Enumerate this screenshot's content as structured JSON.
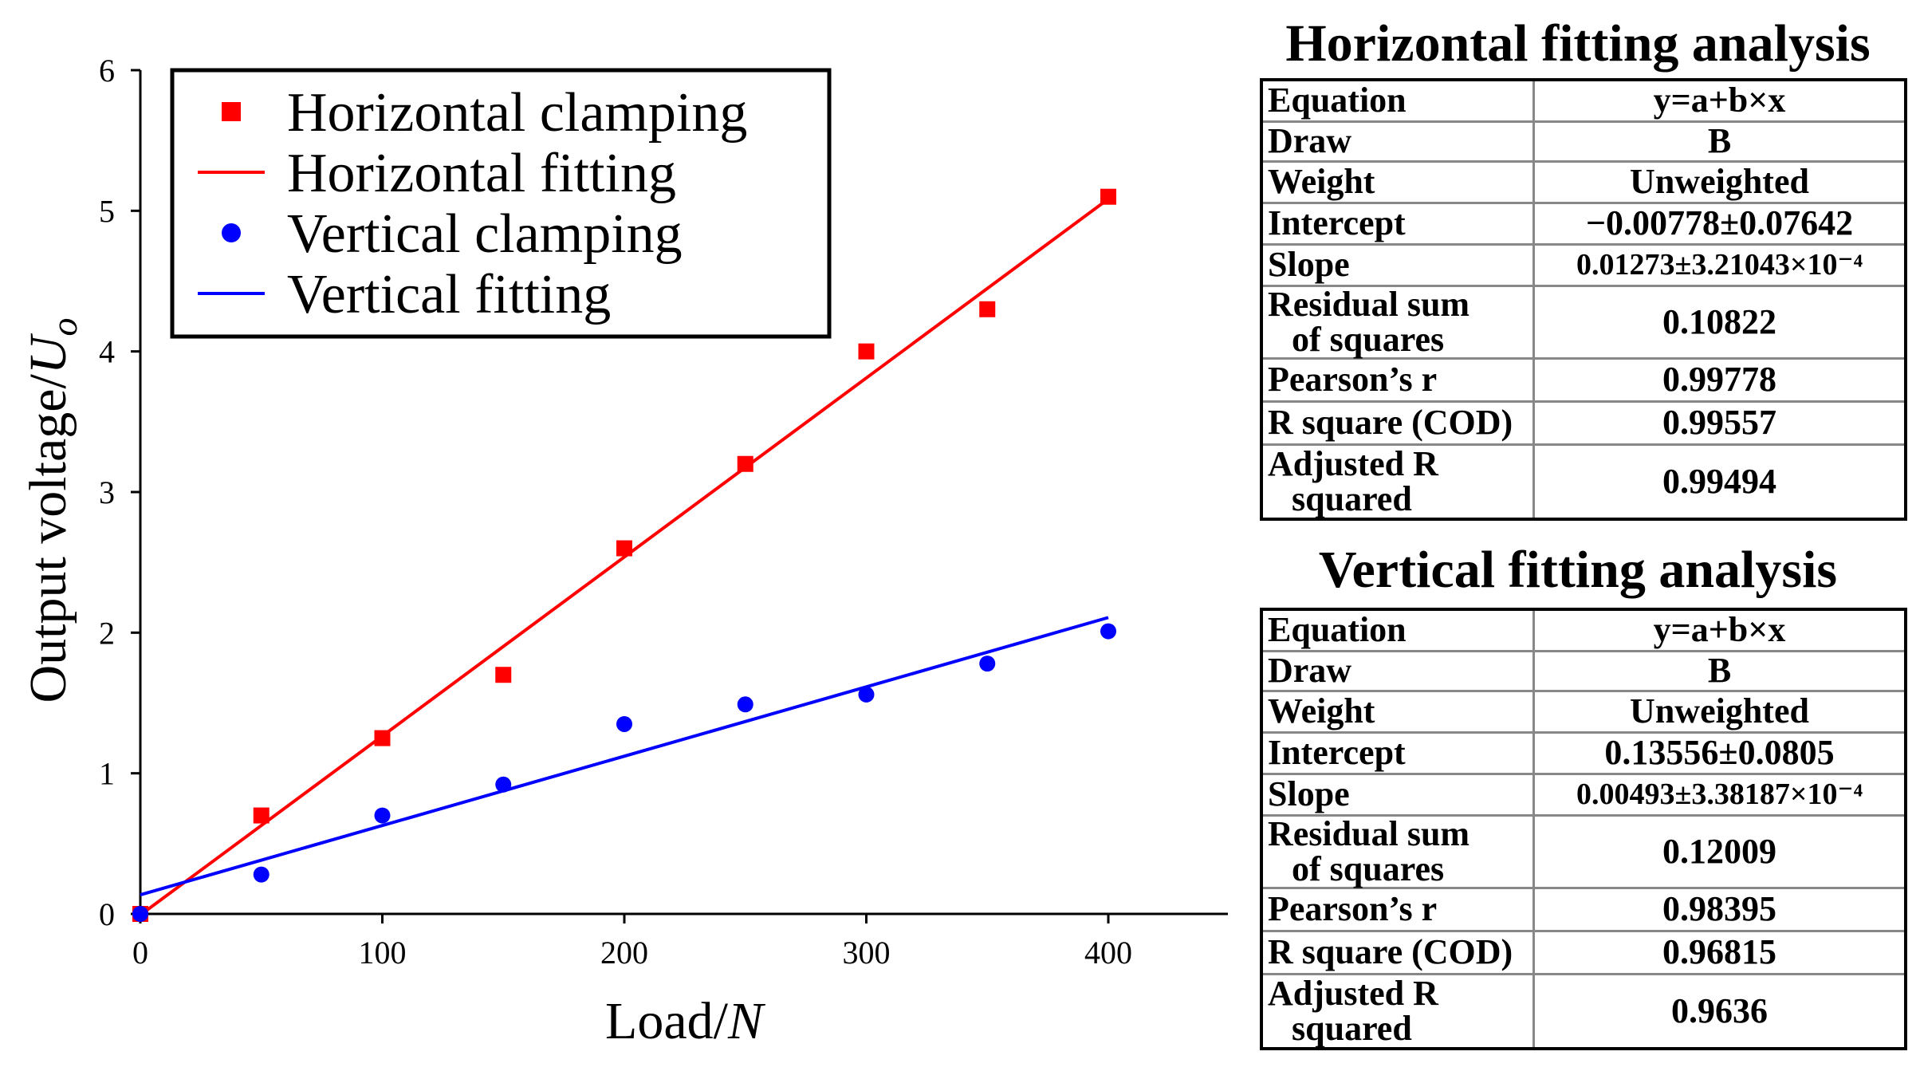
{
  "chart_data": {
    "type": "scatter",
    "xlabel": "Load/N",
    "ylabel": "Output voltage/Uo",
    "xlim": [
      0,
      450
    ],
    "ylim": [
      0,
      6
    ],
    "xticks": [
      "0",
      "100",
      "200",
      "300",
      "400"
    ],
    "yticks": [
      "0",
      "1",
      "2",
      "3",
      "4",
      "5",
      "6"
    ],
    "legend_position": "top-left",
    "legend": [
      "Horizontal clamping",
      "Horizontal fitting",
      "Vertical clamping",
      "Vertical fitting"
    ],
    "series": [
      {
        "name": "Horizontal clamping",
        "kind": "points",
        "marker": "square",
        "color": "#ff0000",
        "x": [
          0,
          50,
          100,
          150,
          200,
          250,
          300,
          350,
          400
        ],
        "y": [
          0,
          0.7,
          1.25,
          1.7,
          2.6,
          3.2,
          4.0,
          4.3,
          5.1
        ]
      },
      {
        "name": "Horizontal fitting",
        "kind": "line",
        "color": "#ff0000",
        "x": [
          0,
          400
        ],
        "y": [
          -0.00778,
          5.08422
        ]
      },
      {
        "name": "Vertical clamping",
        "kind": "points",
        "marker": "circle",
        "color": "#0000ff",
        "x": [
          0,
          50,
          100,
          150,
          200,
          250,
          300,
          350,
          400
        ],
        "y": [
          0,
          0.28,
          0.7,
          0.92,
          1.35,
          1.49,
          1.56,
          1.78,
          2.01
        ]
      },
      {
        "name": "Vertical fitting",
        "kind": "line",
        "color": "#0000ff",
        "x": [
          0,
          400
        ],
        "y": [
          0.13556,
          2.10756
        ]
      }
    ]
  },
  "horizontal_analysis": {
    "title": "Horizontal fitting analysis",
    "rows": [
      {
        "key": "Equation",
        "value": "y=a+b×x"
      },
      {
        "key": "Draw",
        "value": "B"
      },
      {
        "key": "Weight",
        "value": "Unweighted"
      },
      {
        "key": "Intercept",
        "value": "−0.00778±0.07642"
      },
      {
        "key": "Slope",
        "value": "0.01273±3.21043×10⁻⁴"
      },
      {
        "key": "Residual sum",
        "key2": "of squares",
        "value": "0.10822"
      },
      {
        "key": "Pearson’s r",
        "value": "0.99778"
      },
      {
        "key": "R square (COD)",
        "value": "0.99557"
      },
      {
        "key": "Adjusted R",
        "key2": "squared",
        "value": "0.99494"
      }
    ]
  },
  "vertical_analysis": {
    "title": "Vertical fitting analysis",
    "rows": [
      {
        "key": "Equation",
        "value": "y=a+b×x"
      },
      {
        "key": "Draw",
        "value": "B"
      },
      {
        "key": "Weight",
        "value": "Unweighted"
      },
      {
        "key": "Intercept",
        "value": "0.13556±0.0805"
      },
      {
        "key": "Slope",
        "value": "0.00493±3.38187×10⁻⁴"
      },
      {
        "key": "Residual sum",
        "key2": "of squares",
        "value": "0.12009"
      },
      {
        "key": "Pearson’s r",
        "value": "0.98395"
      },
      {
        "key": "R square (COD)",
        "value": "0.96815"
      },
      {
        "key": "Adjusted R",
        "key2": "squared",
        "value": "0.9636"
      }
    ]
  }
}
